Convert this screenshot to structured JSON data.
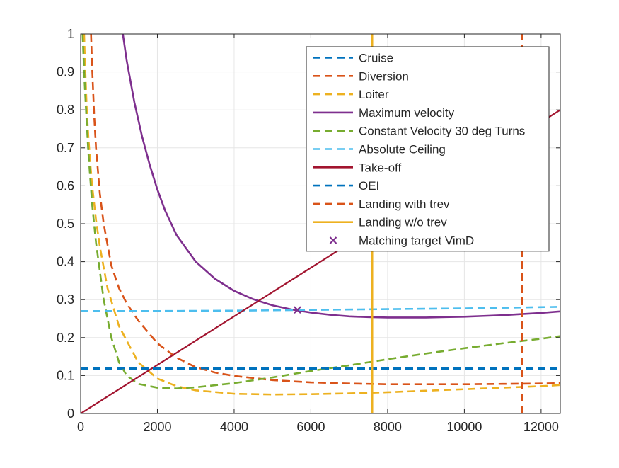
{
  "chart_data": {
    "type": "line",
    "title": "",
    "xlabel": "",
    "ylabel": "",
    "xlim": [
      0,
      12500
    ],
    "ylim": [
      0,
      1
    ],
    "grid": true,
    "legend_position": "top-right",
    "x_ticks": [
      0,
      2000,
      4000,
      6000,
      8000,
      10000,
      12000
    ],
    "x_tick_labels": [
      "0",
      "2000",
      "4000",
      "6000",
      "8000",
      "10000",
      "12000"
    ],
    "y_ticks": [
      0,
      0.1,
      0.2,
      0.3,
      0.4,
      0.5,
      0.6,
      0.7,
      0.8,
      0.9,
      1
    ],
    "y_tick_labels": [
      "0",
      "0.1",
      "0.2",
      "0.3",
      "0.4",
      "0.5",
      "0.6",
      "0.7",
      "0.8",
      "0.9",
      "1"
    ],
    "series": [
      {
        "name": "Cruise",
        "color": "#0072BD",
        "style": "dashed",
        "width": 2.6,
        "x": [
          0,
          12500
        ],
        "y": [
          0.118,
          0.118
        ]
      },
      {
        "name": "Diversion",
        "color": "#D95319",
        "style": "dashed",
        "width": 2.6,
        "x": [
          270,
          300,
          350,
          400,
          500,
          600,
          800,
          1000,
          1200,
          1500,
          2000,
          2500,
          3000,
          3500,
          4000,
          5000,
          6000,
          7000,
          8000,
          9000,
          10000,
          11000,
          12000,
          12500
        ],
        "y": [
          1.0,
          0.91,
          0.79,
          0.7,
          0.58,
          0.5,
          0.39,
          0.33,
          0.29,
          0.245,
          0.185,
          0.147,
          0.122,
          0.108,
          0.099,
          0.088,
          0.082,
          0.079,
          0.077,
          0.077,
          0.077,
          0.078,
          0.079,
          0.08
        ]
      },
      {
        "name": "Loiter",
        "color": "#EDB120",
        "style": "dashed",
        "width": 2.6,
        "x": [
          90,
          110,
          130,
          160,
          200,
          250,
          300,
          400,
          500,
          700,
          1000,
          1500,
          2000,
          2500,
          3000,
          4000,
          5000,
          6000,
          7000,
          8000,
          9000,
          10000,
          11000,
          12000,
          12500
        ],
        "y": [
          1.0,
          0.93,
          0.88,
          0.8,
          0.73,
          0.66,
          0.6,
          0.51,
          0.44,
          0.33,
          0.23,
          0.135,
          0.092,
          0.072,
          0.061,
          0.052,
          0.05,
          0.051,
          0.053,
          0.056,
          0.06,
          0.064,
          0.068,
          0.072,
          0.075
        ]
      },
      {
        "name": "Maximum velocity",
        "color": "#7E2F8E",
        "style": "solid",
        "width": 2.6,
        "x": [
          1100,
          1200,
          1400,
          1600,
          1800,
          2000,
          2200,
          2500,
          3000,
          3500,
          4000,
          4500,
          5000,
          5500,
          6000,
          6500,
          7000,
          7500,
          8000,
          8500,
          9000,
          9500,
          10000,
          10500,
          11000,
          11500,
          12000,
          12500
        ],
        "y": [
          1.0,
          0.93,
          0.82,
          0.73,
          0.655,
          0.59,
          0.535,
          0.47,
          0.4,
          0.355,
          0.323,
          0.301,
          0.285,
          0.274,
          0.266,
          0.26,
          0.256,
          0.254,
          0.253,
          0.253,
          0.253,
          0.254,
          0.255,
          0.257,
          0.259,
          0.262,
          0.265,
          0.269
        ]
      },
      {
        "name": "Constant Velocity 30 deg Turns",
        "color": "#77AC30",
        "style": "dashed",
        "width": 2.6,
        "x": [
          50,
          70,
          100,
          150,
          200,
          300,
          400,
          600,
          800,
          1000,
          1200,
          1500,
          2000,
          2500,
          3000,
          4000,
          5000,
          6000,
          7000,
          8000,
          9000,
          10000,
          11000,
          12000,
          12500
        ],
        "y": [
          1.0,
          0.95,
          0.88,
          0.78,
          0.69,
          0.55,
          0.45,
          0.3,
          0.2,
          0.135,
          0.1,
          0.078,
          0.068,
          0.066,
          0.069,
          0.08,
          0.095,
          0.112,
          0.127,
          0.143,
          0.158,
          0.172,
          0.185,
          0.197,
          0.204
        ]
      },
      {
        "name": "Absolute Ceiling",
        "color": "#4DBEEE",
        "style": "dashed",
        "width": 2.6,
        "x": [
          0,
          2000,
          4000,
          6000,
          8000,
          10000,
          12500
        ],
        "y": [
          0.27,
          0.27,
          0.271,
          0.273,
          0.275,
          0.277,
          0.281
        ]
      },
      {
        "name": "Take-off",
        "color": "#A2142F",
        "style": "solid",
        "width": 2.2,
        "x": [
          0,
          12500
        ],
        "y": [
          0,
          0.8
        ]
      },
      {
        "name": "OEI",
        "color": "#0072BD",
        "style": "dashed",
        "width": 2.6,
        "x": [
          0,
          12500
        ],
        "y": [
          0.119,
          0.119
        ]
      },
      {
        "name": "Landing with trev",
        "color": "#D95319",
        "style": "dashed",
        "width": 2.6,
        "x": [
          11500,
          11500
        ],
        "y": [
          0,
          1
        ]
      },
      {
        "name": "Landing w/o trev",
        "color": "#EDB120",
        "style": "solid",
        "width": 2.6,
        "x": [
          7600,
          7600
        ],
        "y": [
          0,
          1
        ]
      }
    ],
    "points": [
      {
        "name": "Matching target VimD",
        "color": "#7E2F8E",
        "marker": "x",
        "x": 5650,
        "y": 0.273
      }
    ],
    "legend": [
      {
        "label": "Cruise",
        "color": "#0072BD",
        "style": "dashed"
      },
      {
        "label": "Diversion",
        "color": "#D95319",
        "style": "dashed"
      },
      {
        "label": "Loiter",
        "color": "#EDB120",
        "style": "dashed"
      },
      {
        "label": "Maximum velocity",
        "color": "#7E2F8E",
        "style": "solid"
      },
      {
        "label": "Constant Velocity 30 deg Turns",
        "color": "#77AC30",
        "style": "dashed"
      },
      {
        "label": "Absolute Ceiling",
        "color": "#4DBEEE",
        "style": "dashed"
      },
      {
        "label": "Take-off",
        "color": "#A2142F",
        "style": "solid"
      },
      {
        "label": "OEI",
        "color": "#0072BD",
        "style": "dashed"
      },
      {
        "label": "Landing with trev",
        "color": "#D95319",
        "style": "dashed"
      },
      {
        "label": "Landing w/o trev",
        "color": "#EDB120",
        "style": "solid"
      },
      {
        "label": "Matching target VimD",
        "color": "#7E2F8E",
        "style": "marker-x"
      }
    ]
  }
}
